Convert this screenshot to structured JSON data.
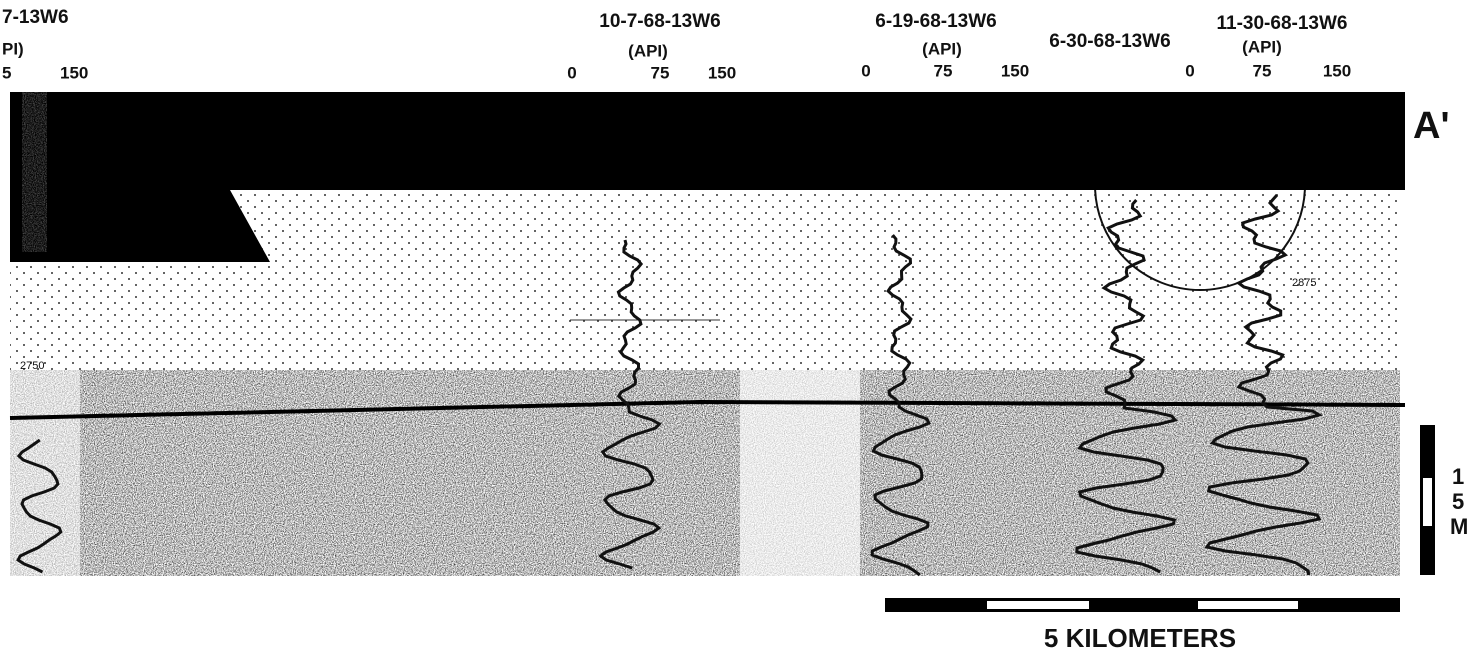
{
  "wells": [
    {
      "name": "7-13W6",
      "unit": "PI)",
      "scale": [
        "5",
        "150"
      ]
    },
    {
      "name": "10-7-68-13W6",
      "unit": "(API)",
      "scale": [
        "0",
        "75",
        "150"
      ]
    },
    {
      "name": "6-19-68-13W6",
      "unit": "(API)",
      "scale": [
        "0",
        "75",
        "150"
      ]
    },
    {
      "name": "6-30-68-13W6"
    },
    {
      "name": "11-30-68-13W6",
      "unit": "(API)",
      "scale": [
        "0",
        "75",
        "150"
      ]
    }
  ],
  "section_label": "A'",
  "depth_labels": [
    "2750",
    "2875"
  ],
  "vertical_scale": [
    "1",
    "5",
    "M"
  ],
  "horizontal_scale": "5 KILOMETERS"
}
